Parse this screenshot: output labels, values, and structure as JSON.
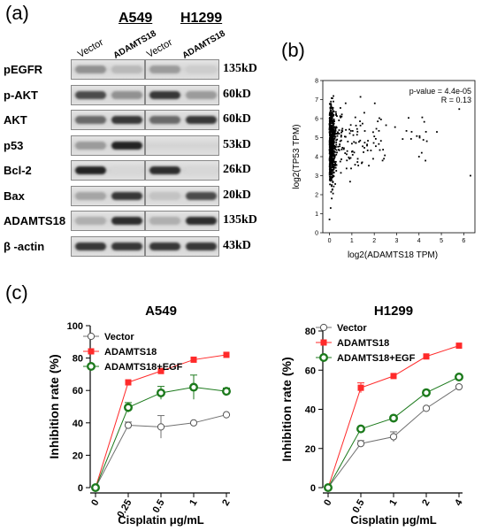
{
  "panel_labels": {
    "a": "(a)",
    "b": "(b)",
    "c": "(c)"
  },
  "western_blot": {
    "cell_lines": [
      "A549",
      "H1299"
    ],
    "lane_headers": [
      "Vector",
      "ADAMTS18",
      "Vector",
      "ADAMTS18"
    ],
    "rows": [
      {
        "protein": "pEGFR",
        "size": "135kD",
        "a549": [
          0.4,
          0.2
        ],
        "h1299": [
          0.35,
          0.1
        ]
      },
      {
        "protein": "p-AKT",
        "size": "60kD",
        "a549": [
          0.75,
          0.4
        ],
        "h1299": [
          0.85,
          0.35
        ]
      },
      {
        "protein": "AKT",
        "size": "60kD",
        "a549": [
          0.6,
          0.85
        ],
        "h1299": [
          0.6,
          0.85
        ]
      },
      {
        "protein": "p53",
        "size": "53kD",
        "a549": [
          0.35,
          0.95
        ],
        "h1299": [
          0.0,
          0.0
        ]
      },
      {
        "protein": "Bcl-2",
        "size": "26kD",
        "a549": [
          0.95,
          0.05
        ],
        "h1299": [
          0.9,
          0.05
        ]
      },
      {
        "protein": "Bax",
        "size": "20kD",
        "a549": [
          0.3,
          0.85
        ],
        "h1299": [
          0.15,
          0.75
        ]
      },
      {
        "protein": "ADAMTS18",
        "size": "135kD",
        "a549": [
          0.25,
          0.9
        ],
        "h1299": [
          0.25,
          0.9
        ]
      },
      {
        "protein": "β -actin",
        "size": "43kD",
        "a549": [
          0.85,
          0.85
        ],
        "h1299": [
          0.85,
          0.85
        ]
      }
    ]
  },
  "chart_data": [
    {
      "type": "scatter",
      "xlabel": "log2(ADAMTS18 TPM)",
      "ylabel": "log2(TP53 TPM)",
      "xlim": [
        -0.3,
        6.5
      ],
      "ylim": [
        0,
        8
      ],
      "xticks": [
        0,
        1,
        2,
        3,
        4,
        5,
        6
      ],
      "yticks": [
        0,
        1,
        2,
        3,
        4,
        5,
        6,
        7,
        8
      ],
      "annotations": [
        "p-value = 4.4e-05",
        "R = 0.13"
      ]
    },
    {
      "type": "line",
      "title": "A549",
      "xlabel": "Cisplatin μg/mL",
      "ylabel": "Inhibition rate (%)",
      "x": [
        "0",
        "0.25",
        "0.5",
        "1",
        "2"
      ],
      "ylim": [
        0,
        100
      ],
      "yticks": [
        0,
        20,
        40,
        60,
        80,
        100
      ],
      "series": [
        {
          "name": "Vector",
          "values": [
            0,
            38.5,
            37.5,
            40,
            45
          ],
          "errors": [
            0,
            2,
            7,
            0.5,
            0.5
          ],
          "color": "#707070",
          "marker": "open-circle"
        },
        {
          "name": "ADAMTS18",
          "values": [
            0,
            65,
            72,
            79,
            82
          ],
          "errors": [
            0,
            0.5,
            0.5,
            0.5,
            0.5
          ],
          "color": "#ff2a2a",
          "marker": "square"
        },
        {
          "name": "ADAMTS18+EGF",
          "values": [
            0,
            49.5,
            58.5,
            62,
            59.5
          ],
          "errors": [
            0,
            3,
            4,
            7.5,
            2
          ],
          "color": "#1c7a1c",
          "marker": "circle-ring"
        }
      ]
    },
    {
      "type": "line",
      "title": "H1299",
      "xlabel": "Cisplatin μg/mL",
      "ylabel": "Inhibition rate (%)",
      "x": [
        "0",
        "0.5",
        "1",
        "2",
        "4"
      ],
      "ylim": [
        0,
        80
      ],
      "yticks": [
        0,
        20,
        40,
        60,
        80
      ],
      "series": [
        {
          "name": "Vector",
          "values": [
            0,
            22.5,
            26,
            40.5,
            51.5
          ],
          "errors": [
            0,
            1.5,
            2.5,
            0.5,
            0.5
          ],
          "color": "#707070",
          "marker": "open-circle"
        },
        {
          "name": "ADAMTS18",
          "values": [
            0,
            51,
            57,
            67,
            72.5
          ],
          "errors": [
            0,
            2.5,
            0.5,
            0.5,
            0.5
          ],
          "color": "#ff2a2a",
          "marker": "square"
        },
        {
          "name": "ADAMTS18+EGF",
          "values": [
            0,
            30,
            35.5,
            48.5,
            56.5
          ],
          "errors": [
            0,
            0.5,
            0.5,
            0.5,
            0.5
          ],
          "color": "#1c7a1c",
          "marker": "circle-ring"
        }
      ]
    }
  ]
}
